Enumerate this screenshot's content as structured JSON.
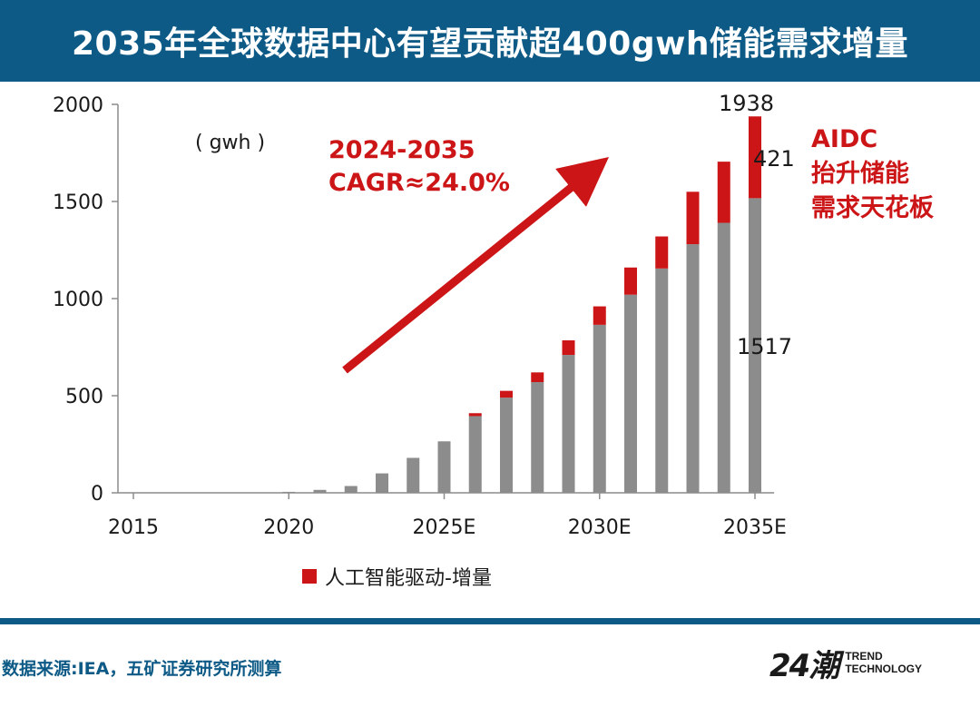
{
  "header": {
    "title": "2035年全球数据中心有望贡献超400gwh储能需求增量"
  },
  "source_note": "数据来源:IEA，五矿证券研究所测算",
  "brand": {
    "logo_text": "24潮",
    "line1": "TREND",
    "line2": "TECHNOLOGY"
  },
  "colors": {
    "header": "#0d5a86",
    "base": "#8c8c8c",
    "increment": "#cc1517",
    "annotation": "#cc1517"
  },
  "chart_data": {
    "type": "bar",
    "stacked": true,
    "unit_label": "( gwh )",
    "x": [
      2015,
      2016,
      2017,
      2018,
      2019,
      2020,
      2021,
      2022,
      2023,
      2024,
      2025,
      2026,
      2027,
      2028,
      2029,
      2030,
      2031,
      2032,
      2033,
      2034,
      2035
    ],
    "x_tick_labels": [
      "2015",
      "2020",
      "2025E",
      "2030E",
      "2035E"
    ],
    "x_tick_values": [
      2015,
      2020,
      2025,
      2030,
      2035
    ],
    "ylim": [
      0,
      2000
    ],
    "y_ticks": [
      0,
      500,
      1000,
      1500,
      2000
    ],
    "series": [
      {
        "values": [
          0,
          0,
          0,
          0,
          0,
          5,
          15,
          35,
          100,
          180,
          265,
          395,
          490,
          570,
          710,
          865,
          1020,
          1155,
          1280,
          1390,
          1517
        ]
      },
      {
        "name": "人工智能驱动-增量",
        "values": [
          0,
          0,
          0,
          0,
          0,
          0,
          0,
          0,
          0,
          0,
          0,
          15,
          35,
          50,
          75,
          95,
          140,
          165,
          270,
          315,
          421
        ]
      }
    ],
    "data_labels": {
      "total": "1938",
      "increment": "421",
      "base": "1517"
    },
    "annotations": {
      "cagr_line1": "2024-2035",
      "cagr_line2": "CAGR≈24.0%",
      "aidc_line1": "AIDC",
      "aidc_line2": "抬升储能",
      "aidc_line3": "需求天花板"
    },
    "legend": {
      "label": "人工智能驱动-增量",
      "position": "bottom"
    },
    "grid": false
  }
}
